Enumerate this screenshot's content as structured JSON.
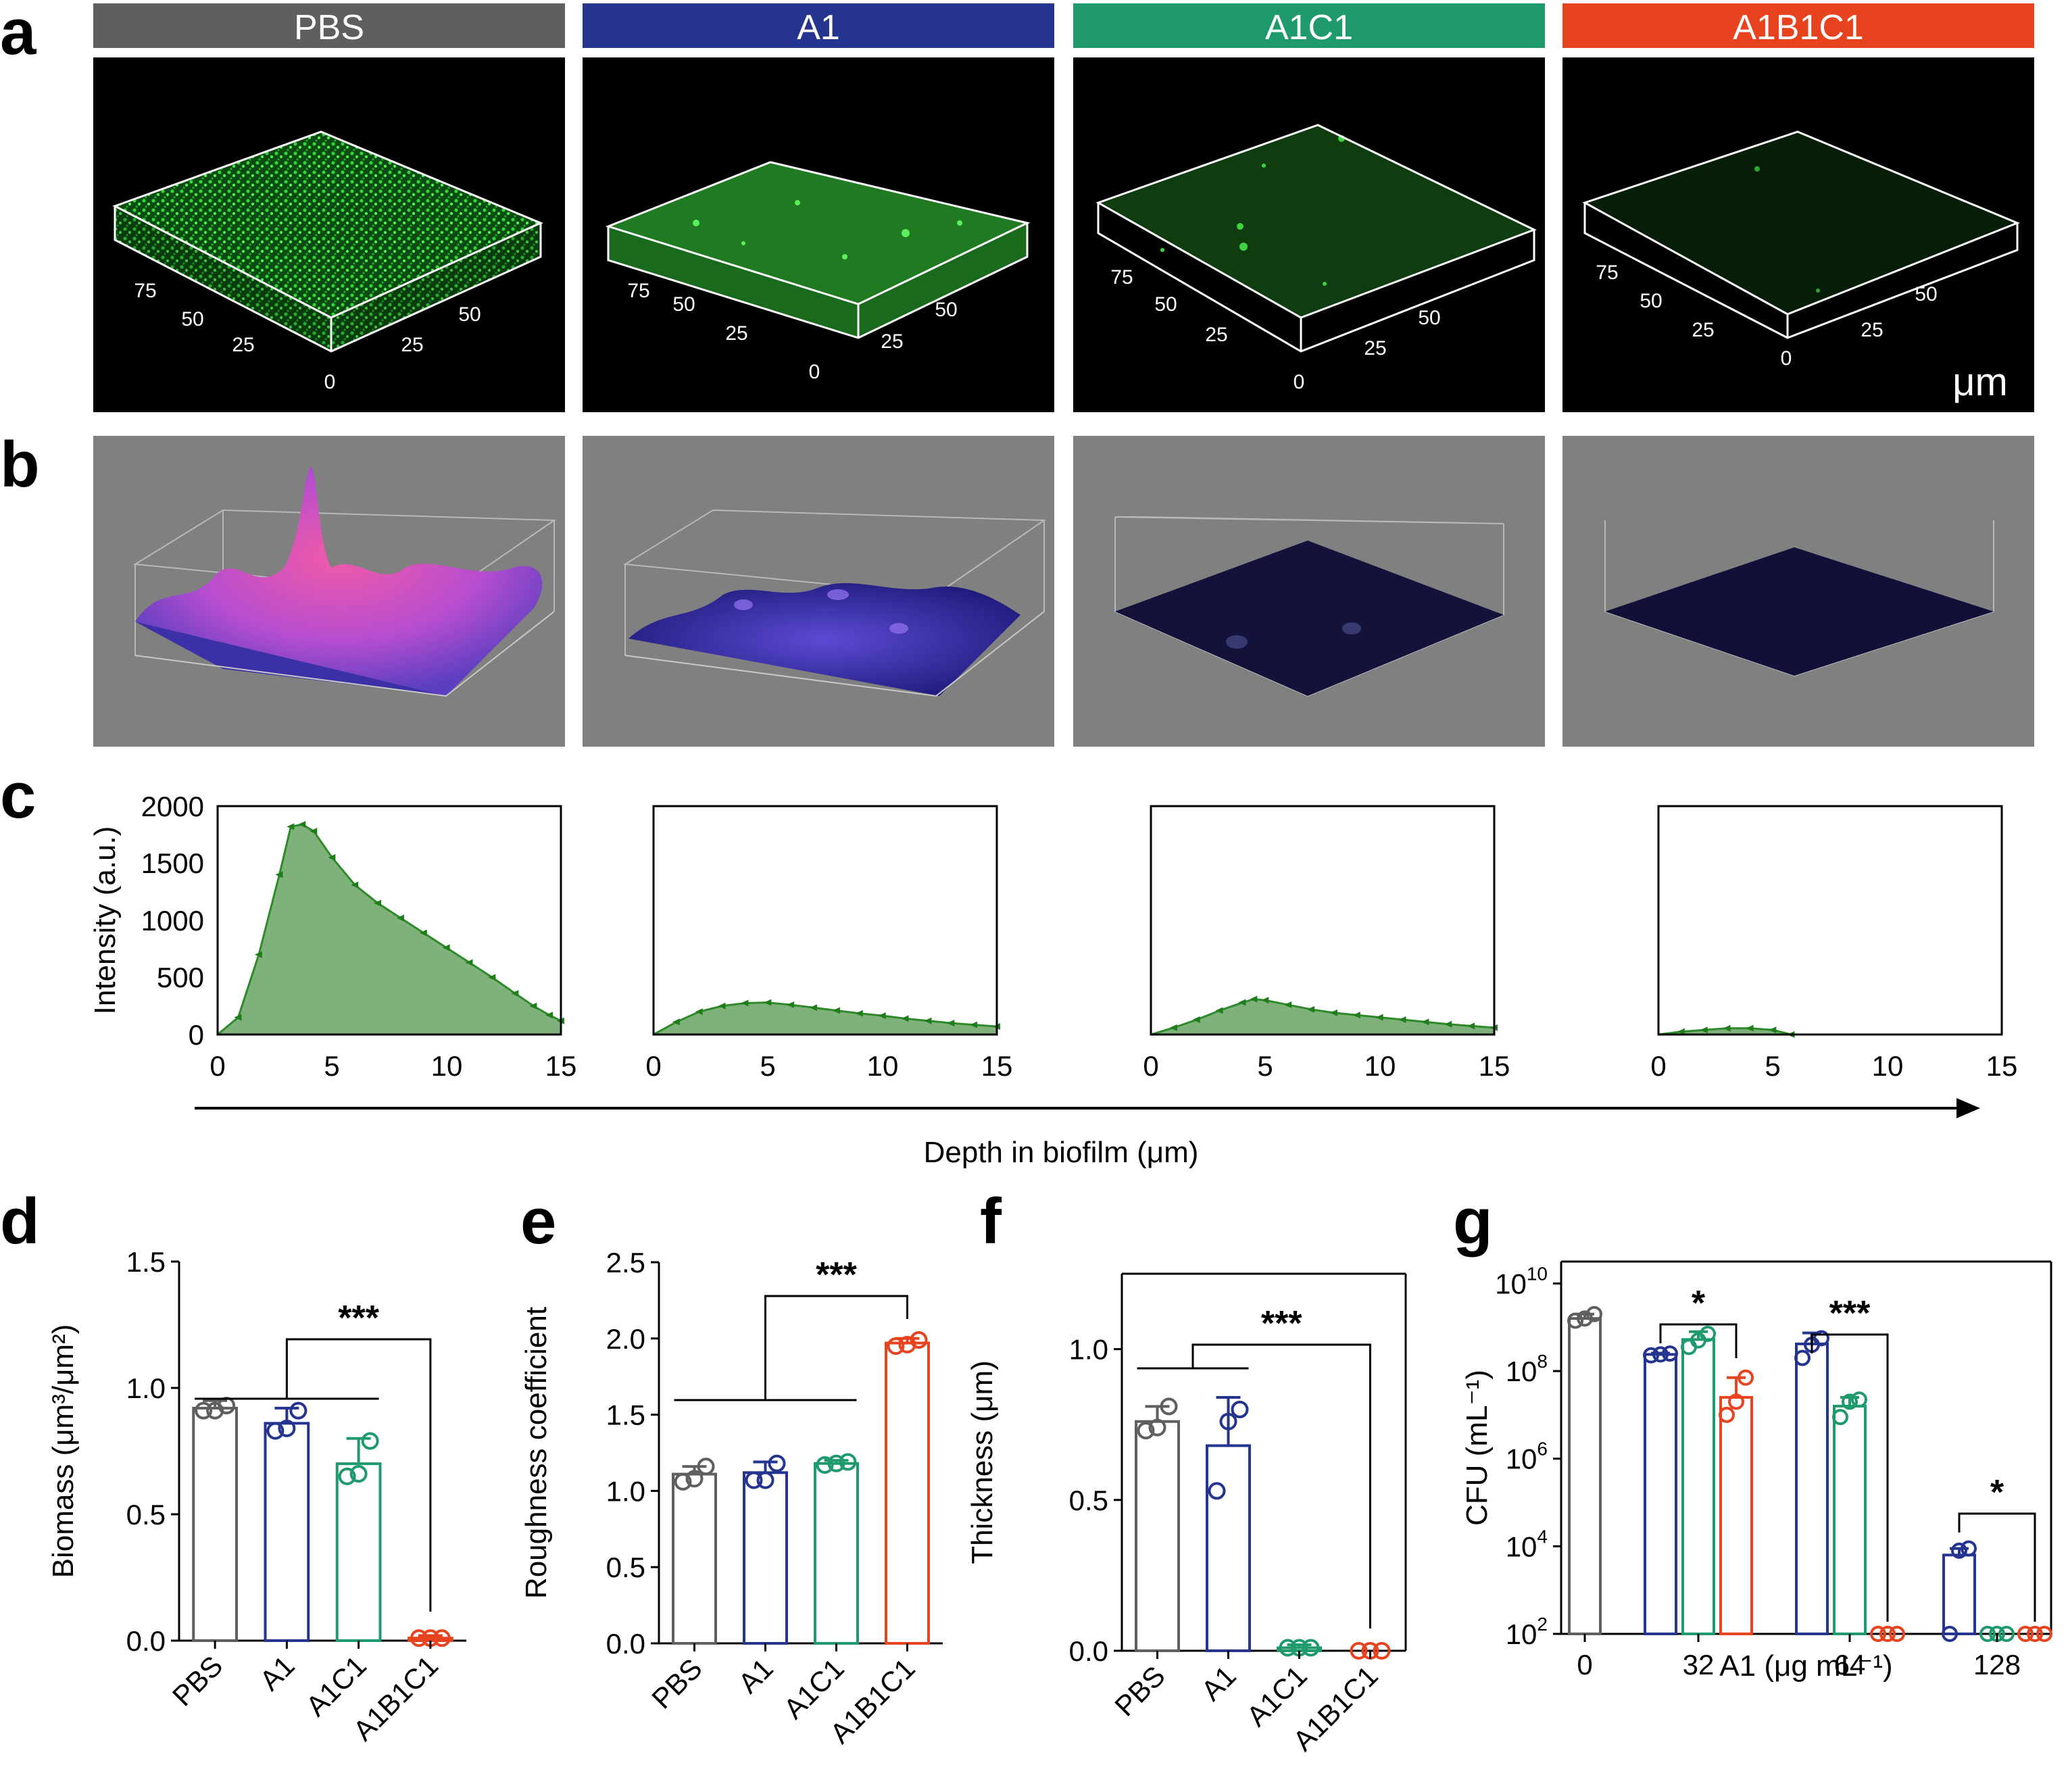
{
  "panel_labels": {
    "a": "a",
    "b": "b",
    "c": "c",
    "d": "d",
    "e": "e",
    "f": "f",
    "g": "g"
  },
  "groups": [
    {
      "name": "PBS",
      "color": "#5f5f5f"
    },
    {
      "name": "A1",
      "color": "#25358f"
    },
    {
      "name": "A1C1",
      "color": "#1e9a6c"
    },
    {
      "name": "A1B1C1",
      "color": "#e8431f"
    }
  ],
  "panel_a": {
    "axis_ticks": [
      "75",
      "50",
      "25",
      "0",
      "25",
      "50"
    ],
    "unit_label": "μm"
  },
  "panel_c": {
    "ylabel": "Intensity (a.u.)",
    "shared_xlabel": "Depth in biofilm (μm)"
  },
  "chart_data": [
    {
      "panel": "c",
      "type": "area",
      "xlim": [
        0,
        15
      ],
      "ylim": [
        0,
        2000
      ],
      "xticks": [
        0,
        5,
        10,
        15
      ],
      "yticks": [
        0,
        500,
        1000,
        1500,
        2000
      ],
      "color": "#5a9b55",
      "series": [
        {
          "group": "PBS",
          "x": [
            0,
            0.9,
            1.8,
            2.7,
            3.2,
            3.7,
            4.2,
            5,
            6,
            7,
            8,
            9,
            10,
            11,
            12,
            13,
            13.8,
            14.5,
            15
          ],
          "y": [
            0,
            150,
            700,
            1400,
            1820,
            1840,
            1780,
            1550,
            1310,
            1150,
            1020,
            890,
            760,
            630,
            500,
            360,
            250,
            170,
            120
          ]
        },
        {
          "group": "A1",
          "x": [
            0,
            1,
            2,
            3,
            4,
            5,
            6,
            7,
            8,
            9,
            10,
            11,
            12,
            13,
            14,
            15
          ],
          "y": [
            0,
            110,
            200,
            250,
            275,
            280,
            260,
            235,
            210,
            185,
            165,
            140,
            120,
            100,
            85,
            70
          ]
        },
        {
          "group": "A1C1",
          "x": [
            0,
            1,
            2,
            3,
            4,
            4.5,
            5,
            6,
            7,
            8,
            9,
            10,
            11,
            12,
            13,
            14,
            15
          ],
          "y": [
            0,
            60,
            130,
            210,
            280,
            310,
            300,
            260,
            220,
            190,
            170,
            150,
            130,
            110,
            90,
            75,
            60
          ]
        },
        {
          "group": "A1B1C1",
          "x": [
            0,
            1,
            2,
            3,
            4,
            5,
            5.8
          ],
          "y": [
            0,
            25,
            40,
            55,
            55,
            40,
            0
          ]
        }
      ]
    },
    {
      "panel": "d",
      "type": "bar",
      "ylabel": "Biomass (μm³/μm²)",
      "ylim": [
        0,
        1.5
      ],
      "yticks": [
        "0.0",
        "0.5",
        "1.0",
        "1.5"
      ],
      "categories": [
        "PBS",
        "A1",
        "A1C1",
        "A1B1C1"
      ],
      "values": [
        0.92,
        0.86,
        0.7,
        0.01
      ],
      "errors": [
        0.03,
        0.06,
        0.1,
        0.01
      ],
      "points": [
        [
          0.91,
          0.91,
          0.93
        ],
        [
          0.83,
          0.84,
          0.91
        ],
        [
          0.65,
          0.66,
          0.79
        ],
        [
          0.01,
          0.01,
          0.01
        ]
      ],
      "significance": "***"
    },
    {
      "panel": "e",
      "type": "bar",
      "ylabel": "Roughness coefficient",
      "ylim": [
        0,
        2.5
      ],
      "yticks": [
        "0.0",
        "0.5",
        "1.0",
        "1.5",
        "2.0",
        "2.5"
      ],
      "categories": [
        "PBS",
        "A1",
        "A1C1",
        "A1B1C1"
      ],
      "values": [
        1.11,
        1.12,
        1.18,
        1.97
      ],
      "errors": [
        0.05,
        0.07,
        0.02,
        0.03
      ],
      "points": [
        [
          1.06,
          1.08,
          1.16
        ],
        [
          1.07,
          1.07,
          1.18
        ],
        [
          1.17,
          1.18,
          1.19
        ],
        [
          1.95,
          1.96,
          1.99
        ]
      ],
      "significance": "***"
    },
    {
      "panel": "f",
      "type": "bar",
      "ylabel": "Thickness (μm)",
      "ylim": [
        0,
        1.25
      ],
      "yticks": [
        "0.0",
        "0.5",
        "1.0"
      ],
      "categories": [
        "PBS",
        "A1",
        "A1C1",
        "A1B1C1"
      ],
      "values": [
        0.76,
        0.68,
        0.01,
        0.0
      ],
      "errors": [
        0.05,
        0.16,
        0.01,
        0.0
      ],
      "points": [
        [
          0.73,
          0.74,
          0.81
        ],
        [
          0.53,
          0.76,
          0.8
        ],
        [
          0.01,
          0.01,
          0.01
        ],
        [
          0.0,
          0.0,
          0.0
        ]
      ],
      "significance": "***"
    },
    {
      "panel": "g",
      "type": "bar",
      "scale": "log",
      "ylabel": "CFU (mL⁻¹)",
      "xlabel": "A1 (μg mL⁻¹)",
      "ylim_log10": [
        2,
        10.5
      ],
      "ytick_exponents": [
        2,
        4,
        6,
        8,
        10
      ],
      "categories": [
        "0",
        "32",
        "64",
        "128"
      ],
      "bars": [
        {
          "cat": "0",
          "group": "PBS",
          "log10": 9.2,
          "err": 0.1,
          "points": [
            9.15,
            9.2,
            9.3
          ]
        },
        {
          "cat": "32",
          "group": "A1",
          "log10": 8.38,
          "err": 0.03,
          "points": [
            8.36,
            8.38,
            8.4
          ]
        },
        {
          "cat": "32",
          "group": "A1C1",
          "log10": 8.72,
          "err": 0.18,
          "points": [
            8.55,
            8.7,
            8.85
          ]
        },
        {
          "cat": "32",
          "group": "A1B1C1",
          "log10": 7.4,
          "err": 0.45,
          "points": [
            7.0,
            7.3,
            7.85
          ]
        },
        {
          "cat": "64",
          "group": "A1",
          "log10": 8.62,
          "err": 0.25,
          "points": [
            8.3,
            8.6,
            8.75
          ]
        },
        {
          "cat": "64",
          "group": "A1C1",
          "log10": 7.2,
          "err": 0.2,
          "points": [
            6.95,
            7.3,
            7.35
          ]
        },
        {
          "cat": "64",
          "group": "A1B1C1",
          "log10": 2.0,
          "err": 0,
          "points": [
            2.0,
            2.0,
            2.0
          ]
        },
        {
          "cat": "128",
          "group": "A1",
          "log10": 3.8,
          "err": 0.15,
          "points": [
            2.0,
            3.9,
            3.95
          ]
        },
        {
          "cat": "128",
          "group": "A1C1",
          "log10": 2.0,
          "err": 0,
          "points": [
            2.0,
            2.0,
            2.0
          ]
        },
        {
          "cat": "128",
          "group": "A1B1C1",
          "log10": 2.0,
          "err": 0,
          "points": [
            2.0,
            2.0,
            2.0
          ]
        }
      ],
      "significance": [
        "*",
        "***",
        "*"
      ]
    }
  ]
}
